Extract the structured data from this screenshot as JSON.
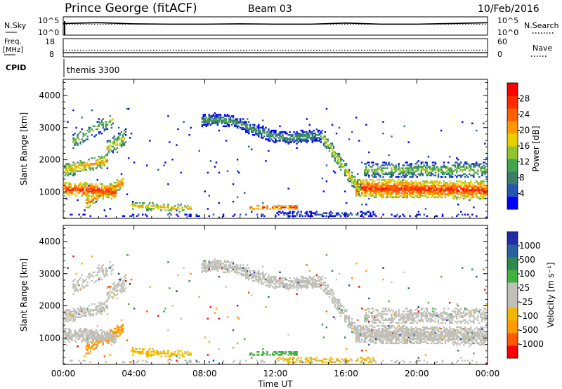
{
  "header": {
    "station": "Prince George (fitACF)",
    "beam": "Beam 03",
    "date": "10/Feb/2016"
  },
  "noise_panel": {
    "left_label": "N.Sky",
    "right_label": "N.Search",
    "left_ticks": [
      "10^5",
      "10^0"
    ],
    "right_ticks": [
      "10^5",
      "10^0"
    ]
  },
  "freq_panel": {
    "left_label_top": "Freq.",
    "left_label_unit": "[MHz]",
    "left_ticks": [
      "18",
      "8"
    ],
    "right_label": "Nave",
    "right_ticks": [
      "60",
      "0"
    ],
    "cpid_label": "CPID",
    "cpid_value": "themis 3300"
  },
  "colors": {
    "power": [
      "#0000ff",
      "#2555b0",
      "#3b7d68",
      "#44a550",
      "#90c42a",
      "#e8d000",
      "#ff9a00",
      "#ff6000",
      "#ff2a00",
      "#ff0000"
    ],
    "velocity": [
      "#ff0000",
      "#ff5a00",
      "#ff9a00",
      "#f0b800",
      "#c0c0b8",
      "#c0c0b8",
      "#40b040",
      "#2e8a4c",
      "#2a5fa0",
      "#1f2ea8"
    ]
  },
  "chart_data": [
    {
      "type": "line",
      "name": "noise",
      "x_range": [
        0,
        24
      ],
      "series": [
        {
          "name": "N.Sky",
          "style": "solid",
          "x": [
            0,
            2,
            4,
            6,
            8,
            10,
            12,
            14,
            16,
            18,
            20,
            22,
            24
          ],
          "y": [
            3.2,
            3.4,
            3.1,
            3.0,
            3.0,
            3.1,
            3.0,
            3.0,
            3.3,
            3.0,
            3.0,
            3.2,
            3.4
          ]
        },
        {
          "name": "N.Search",
          "style": "dotted",
          "x": [
            0,
            4,
            8,
            12,
            16,
            20,
            24
          ],
          "y": [
            3.0,
            3.0,
            3.0,
            3.0,
            3.0,
            3.0,
            3.0
          ]
        }
      ]
    },
    {
      "type": "line",
      "name": "frequency-nave",
      "x_range": [
        0,
        24
      ],
      "series": [
        {
          "name": "Freq.",
          "style": "solid",
          "x": [
            0,
            24
          ],
          "y": [
            10.3,
            10.3
          ]
        },
        {
          "name": "Nave",
          "style": "dotted",
          "x": [
            0,
            24
          ],
          "y": [
            22,
            22
          ]
        }
      ]
    },
    {
      "type": "heatmap",
      "name": "power",
      "x_ticks": [
        "00:00",
        "04:00",
        "08:00",
        "12:00",
        "16:00",
        "20:00",
        "00:00"
      ],
      "x_range": [
        0,
        24
      ],
      "ylabel": "Slant Range [km]",
      "y_ticks": [
        "1000",
        "2000",
        "3000",
        "4000"
      ],
      "y_range": [
        180,
        4500
      ],
      "colorbar_label": "Power [dB]",
      "colorbar_ticks": [
        "4",
        "8",
        "12",
        "16",
        "20",
        "24",
        "28"
      ],
      "colorbar_range": [
        0,
        32
      ]
    },
    {
      "type": "heatmap",
      "name": "velocity",
      "x_ticks": [
        "00:00",
        "04:00",
        "08:00",
        "12:00",
        "16:00",
        "20:00",
        "00:00"
      ],
      "x_range": [
        0,
        24
      ],
      "xlabel": "Time UT",
      "ylabel": "Slant Range [km]",
      "y_ticks": [
        "1000",
        "2000",
        "3000",
        "4000"
      ],
      "y_range": [
        180,
        4500
      ],
      "colorbar_label": "Velocity [m s⁻¹]",
      "colorbar_ticks": [
        "-1000",
        "-500",
        "-100",
        "-25",
        "25",
        "100",
        "500",
        "1000"
      ]
    }
  ]
}
